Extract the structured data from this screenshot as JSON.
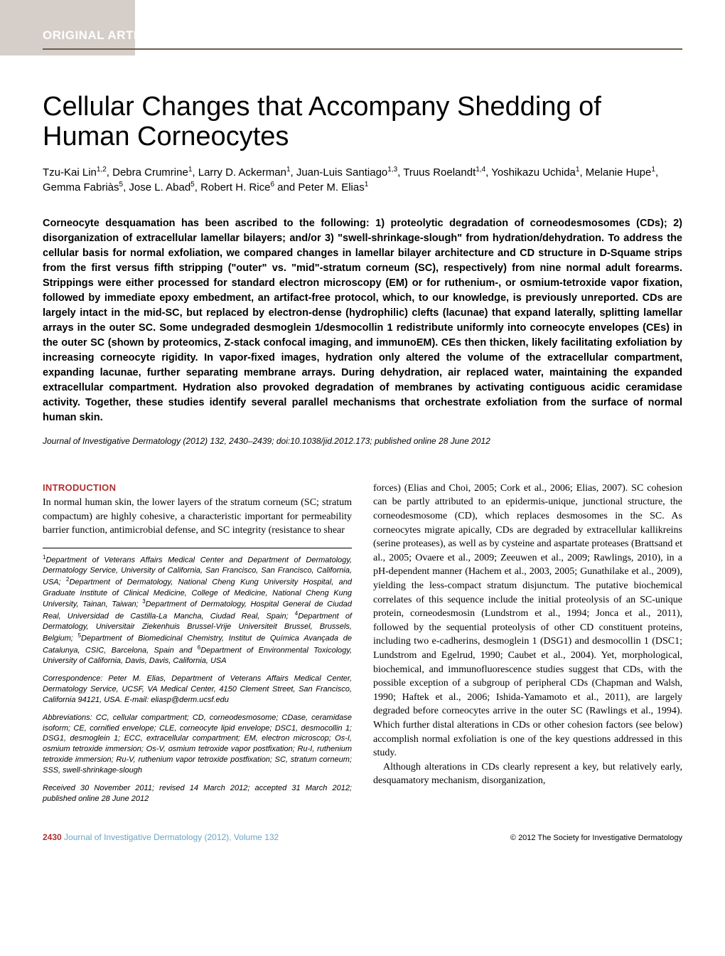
{
  "colors": {
    "band": "#d6cfc9",
    "header_rule": "#6b5d52",
    "section_head": "#b03030",
    "journal_link": "#6aa5c4",
    "text": "#000000",
    "bg": "#ffffff"
  },
  "fonts": {
    "serif": "Times New Roman",
    "sans": "Helvetica Neue",
    "title_size_pt": 38,
    "authors_size_pt": 15,
    "abstract_size_pt": 14.5,
    "body_size_pt": 14,
    "footnote_size_pt": 11
  },
  "header": {
    "label": "ORIGINAL ARTICLE"
  },
  "title": "Cellular Changes that Accompany Shedding of Human Corneocytes",
  "authors_html": "Tzu-Kai Lin<sup>1,2</sup>, Debra Crumrine<sup>1</sup>, Larry D. Ackerman<sup>1</sup>, Juan-Luis Santiago<sup>1,3</sup>, Truus Roelandt<sup>1,4</sup>, Yoshikazu Uchida<sup>1</sup>, Melanie Hupe<sup>1</sup>, Gemma Fabriàs<sup>5</sup>, Jose L. Abad<sup>5</sup>, Robert H. Rice<sup>6</sup> and Peter M. Elias<sup>1</sup>",
  "abstract": "Corneocyte desquamation has been ascribed to the following: 1) proteolytic degradation of corneodesmosomes (CDs); 2) disorganization of extracellular lamellar bilayers; and/or 3) \"swell-shrinkage-slough\" from hydration/dehydration. To address the cellular basis for normal exfoliation, we compared changes in lamellar bilayer architecture and CD structure in D-Squame strips from the first versus fifth stripping (\"outer\" vs. \"mid\"-stratum corneum (SC), respectively) from nine normal adult forearms. Strippings were either processed for standard electron microscopy (EM) or for ruthenium-, or osmium-tetroxide vapor fixation, followed by immediate epoxy embedment, an artifact-free protocol, which, to our knowledge, is previously unreported. CDs are largely intact in the mid-SC, but replaced by electron-dense (hydrophilic) clefts (lacunae) that expand laterally, splitting lamellar arrays in the outer SC. Some undegraded desmoglein 1/desmocollin 1 redistribute uniformly into corneocyte envelopes (CEs) in the outer SC (shown by proteomics, Z-stack confocal imaging, and immunoEM). CEs then thicken, likely facilitating exfoliation by increasing corneocyte rigidity. In vapor-fixed images, hydration only altered the volume of the extracellular compartment, expanding lacunae, further separating membrane arrays. During dehydration, air replaced water, maintaining the expanded extracellular compartment. Hydration also provoked degradation of membranes by activating contiguous acidic ceramidase activity. Together, these studies identify several parallel mechanisms that orchestrate exfoliation from the surface of normal human skin.",
  "citation": "Journal of Investigative Dermatology (2012) 132, 2430–2439; doi:10.1038/jid.2012.173; published online 28 June 2012",
  "body": {
    "intro_head": "INTRODUCTION",
    "left_intro": "In normal human skin, the lower layers of the stratum corneum (SC; stratum compactum) are highly cohesive, a characteristic important for permeability barrier function, antimicrobial defense, and SC integrity (resistance to shear",
    "right_p1": "forces) (Elias and Choi, 2005; Cork et al., 2006; Elias, 2007). SC cohesion can be partly attributed to an epidermis-unique, junctional structure, the corneodesmosome (CD), which replaces desmosomes in the SC. As corneocytes migrate apically, CDs are degraded by extracellular kallikreins (serine proteases), as well as by cysteine and aspartate proteases (Brattsand et al., 2005; Ovaere et al., 2009; Zeeuwen et al., 2009; Rawlings, 2010), in a pH-dependent manner (Hachem et al., 2003, 2005; Gunathilake et al., 2009), yielding the less-compact stratum disjunctum. The putative biochemical correlates of this sequence include the initial proteolysis of an SC-unique protein, corneodesmosin (Lundstrom et al., 1994; Jonca et al., 2011), followed by the sequential proteolysis of other CD constituent proteins, including two e-cadherins, desmoglein 1 (DSG1) and desmocollin 1 (DSC1; Lundstrom and Egelrud, 1990; Caubet et al., 2004). Yet, morphological, biochemical, and immunofluorescence studies suggest that CDs, with the possible exception of a subgroup of peripheral CDs (Chapman and Walsh, 1990; Haftek et al., 2006; Ishida-Yamamoto et al., 2011), are largely degraded before corneocytes arrive in the outer SC (Rawlings et al., 1994). Which further distal alterations in CDs or other cohesion factors (see below) accomplish normal exfoliation is one of the key questions addressed in this study.",
    "right_p2": "Although alterations in CDs clearly represent a key, but relatively early, desquamatory mechanism, disorganization,"
  },
  "affiliations_html": "<sup>1</sup>Department of Veterans Affairs Medical Center and Department of Dermatology, Dermatology Service, University of California, San Francisco, San Francisco, California, USA; <sup>2</sup>Department of Dermatology, National Cheng Kung University Hospital, and Graduate Institute of Clinical Medicine, College of Medicine, National Cheng Kung University, Tainan, Taiwan; <sup>3</sup>Department of Dermatology, Hospital General de Ciudad Real, Universidad de Castilla-La Mancha, Ciudad Real, Spain; <sup>4</sup>Department of Dermatology, Universitair Ziekenhuis Brussel-Vrije Universiteit Brussel, Brussels, Belgium; <sup>5</sup>Department of Biomedicinal Chemistry, Institut de Química Avançada de Catalunya, CSIC, Barcelona, Spain and <sup>6</sup>Department of Environmental Toxicology, University of California, Davis, Davis, California, USA",
  "correspondence": "Correspondence: Peter M. Elias, Department of Veterans Affairs Medical Center, Dermatology Service, UCSF, VA Medical Center, 4150 Clement Street, San Francisco, California 94121, USA. E-mail: eliasp@derm.ucsf.edu",
  "abbreviations": "Abbreviations: CC, cellular compartment; CD, corneodesmosome; CDase, ceramidase isoform; CE, cornified envelope; CLE, corneocyte lipid envelope; DSC1, desmocollin 1; DSG1, desmoglein 1; ECC, extracellular compartment; EM, electron microscop; Os-I, osmium tetroxide immersion; Os-V, osmium tetroxide vapor postfixation; Ru-I, ruthenium tetroxide immersion; Ru-V, ruthenium vapor tetroxide postfixation; SC, stratum corneum; SSS, swell-shrinkage-slough",
  "received": "Received 30 November 2011; revised 14 March 2012; accepted 31 March 2012; published online 28 June 2012",
  "footer": {
    "page_number": "2430",
    "journal": "Journal of Investigative Dermatology (2012), Volume 132",
    "copyright": "© 2012 The Society for Investigative Dermatology"
  }
}
